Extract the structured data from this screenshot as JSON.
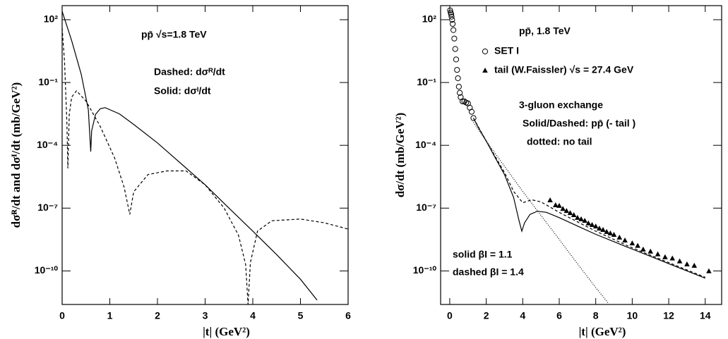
{
  "chart_data": [
    {
      "type": "line",
      "log_y": true,
      "x_label": "|t| (GeV²)",
      "y_label": "dσᴿ/dt  and  dσᴵ/dt (mb/GeV²)",
      "annotations": [
        "pp̄  √s=1.8 TeV",
        "Dashed: dσᴿ/dt",
        "Solid: dσᴵ/dt"
      ],
      "xlim": [
        0,
        6
      ],
      "xticks": [
        0,
        1,
        2,
        3,
        4,
        5,
        6
      ],
      "ylim": [
        2.5e-12,
        470
      ],
      "yticks": [
        {
          "value": 100,
          "label": "10²"
        },
        {
          "value": 0.1,
          "label": "10⁻¹"
        },
        {
          "value": 0.0001,
          "label": "10⁻⁴"
        },
        {
          "value": 1e-07,
          "label": "10⁻⁷"
        },
        {
          "value": 1e-10,
          "label": "10⁻¹⁰"
        }
      ],
      "series": [
        {
          "color": "#000000",
          "style": "solid",
          "x": [
            0,
            0.2,
            0.4,
            0.55,
            0.6,
            0.62,
            0.7,
            0.8,
            0.9,
            1.2,
            1.5,
            2,
            2.5,
            3,
            3.5,
            4,
            4.5,
            5,
            5.35
          ],
          "values": [
            250,
            10,
            0.25,
            0.005,
            5e-05,
            0.0005,
            0.003,
            0.0056,
            0.0063,
            0.0032,
            0.001,
            0.00013,
            1.3e-05,
            1.3e-06,
            1e-07,
            8e-09,
            6e-10,
            4e-11,
            4e-12
          ]
        },
        {
          "color": "#000000",
          "style": "dashed",
          "x": [
            0,
            0.05,
            0.1,
            0.12,
            0.15,
            0.2,
            0.3,
            0.5,
            0.8,
            1.1,
            1.3,
            1.42,
            1.5,
            1.8,
            2.2,
            2.6,
            3,
            3.4,
            3.7,
            3.85,
            3.9,
            3.95,
            4.1,
            4.4,
            5,
            5.5,
            6
          ],
          "values": [
            40,
            1,
            0.001,
            8e-06,
            0.003,
            0.02,
            0.04,
            0.013,
            0.0008,
            2.5e-05,
            1e-06,
            5e-08,
            6e-07,
            4e-06,
            6e-06,
            6e-06,
            1.3e-06,
            1e-07,
            5e-09,
            2e-10,
            2.5e-12,
            2.5e-10,
            8e-09,
            2.5e-08,
            3e-08,
            2e-08,
            1e-08
          ]
        }
      ]
    },
    {
      "type": "line",
      "log_y": true,
      "x_label": "|t| (GeV²)",
      "y_label": "dσ/dt (mb/GeV²)",
      "annotations": [
        "pp̄, 1.8 TeV",
        "3-gluon exchange",
        "Solid/Dashed: pp̄ (- tail )",
        "dotted: no tail",
        "solid  βI = 1.1",
        "dashed  βI = 1.4"
      ],
      "xlim": [
        -0.5,
        14.9
      ],
      "xticks": [
        0,
        2,
        4,
        6,
        8,
        10,
        12,
        14
      ],
      "ylim": [
        2.5e-12,
        470
      ],
      "yticks": [
        {
          "value": 100,
          "label": "10²"
        },
        {
          "value": 0.1,
          "label": "10⁻¹"
        },
        {
          "value": 0.0001,
          "label": "10⁻⁴"
        },
        {
          "value": 1e-07,
          "label": "10⁻⁷"
        },
        {
          "value": 1e-10,
          "label": "10⁻¹⁰"
        }
      ],
      "series": [
        {
          "name": "SET I",
          "color": "#000000",
          "style": "circle",
          "x": [
            0.02,
            0.05,
            0.08,
            0.1,
            0.13,
            0.16,
            0.2,
            0.25,
            0.3,
            0.35,
            0.4,
            0.45,
            0.5,
            0.55,
            0.6,
            0.7,
            0.8,
            0.9,
            1.0,
            1.1,
            1.2,
            1.3
          ],
          "values": [
            280,
            220,
            180,
            140,
            100,
            63,
            32,
            12.6,
            4,
            1.26,
            0.4,
            0.16,
            0.063,
            0.032,
            0.02,
            0.0126,
            0.0126,
            0.011,
            0.01,
            0.0063,
            0.004,
            0.002
          ]
        },
        {
          "name": "tail (W.Faissler) √s = 27.4 GeV",
          "color": "#000000",
          "style": "triangle",
          "x": [
            5.5,
            5.8,
            6.0,
            6.2,
            6.4,
            6.6,
            6.8,
            7.0,
            7.2,
            7.4,
            7.6,
            7.8,
            8.0,
            8.2,
            8.4,
            8.6,
            8.8,
            9.0,
            9.3,
            9.6,
            10.0,
            10.3,
            10.6,
            11.0,
            11.4,
            11.8,
            12.2,
            12.6,
            13.0,
            13.4,
            14.2
          ],
          "values": [
            2.4e-07,
            1.4e-07,
            1.3e-07,
            9.3e-08,
            7.4e-08,
            5.9e-08,
            4.7e-08,
            3.5e-08,
            3e-08,
            2.5e-08,
            1.9e-08,
            1.6e-08,
            1.35e-08,
            1.07e-08,
            9.3e-09,
            7.4e-09,
            6.3e-09,
            5.4e-09,
            4e-09,
            2.9e-09,
            2.1e-09,
            1.6e-09,
            1.07e-09,
            8.5e-10,
            6.3e-10,
            4.6e-10,
            4e-10,
            2.9e-10,
            2.1e-10,
            1.8e-10,
            9.8e-11
          ]
        },
        {
          "color": "#000000",
          "style": "solid",
          "x": [
            1.3,
            1.6,
            2,
            2.5,
            3,
            3.5,
            3.8,
            3.95,
            4.1,
            4.4,
            4.8,
            5.3,
            6,
            7,
            8,
            9,
            10,
            11,
            12,
            13,
            14
          ],
          "values": [
            0.002,
            0.00063,
            0.00016,
            2.5e-05,
            4e-06,
            3.2e-07,
            2.5e-08,
            7.9e-09,
            2e-08,
            5e-08,
            7.1e-08,
            6.3e-08,
            3.5e-08,
            1.4e-08,
            5.6e-09,
            2.5e-09,
            1.1e-09,
            5e-10,
            2.2e-10,
            1e-10,
            4.5e-11
          ]
        },
        {
          "color": "#000000",
          "style": "dashed",
          "x": [
            1.3,
            2,
            3,
            3.5,
            4,
            4.5,
            5,
            6,
            7,
            8,
            10,
            12,
            14
          ],
          "values": [
            0.002,
            0.00016,
            5e-06,
            6.3e-07,
            1.8e-07,
            2.5e-07,
            2e-07,
            6.3e-08,
            2.2e-08,
            7.9e-09,
            1.26e-09,
            2.5e-10,
            5e-11
          ]
        },
        {
          "color": "#000000",
          "style": "dotted",
          "x": [
            1.3,
            2,
            3,
            4,
            5,
            6,
            7,
            8,
            8.7
          ],
          "values": [
            0.00126,
            0.00016,
            1e-05,
            6.3e-07,
            4.5e-08,
            3.2e-09,
            2.2e-10,
            1.6e-11,
            2.8e-12
          ]
        }
      ]
    }
  ]
}
